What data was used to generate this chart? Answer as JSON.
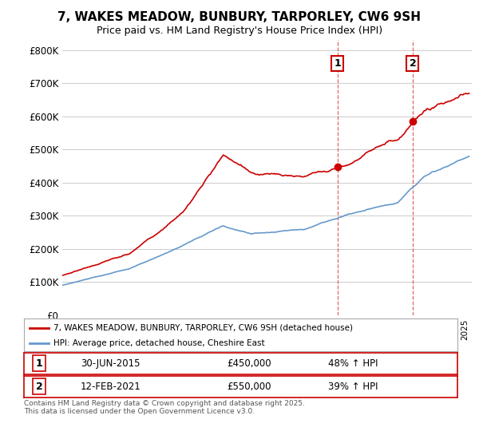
{
  "title": "7, WAKES MEADOW, BUNBURY, TARPORLEY, CW6 9SH",
  "subtitle": "Price paid vs. HM Land Registry's House Price Index (HPI)",
  "yticks": [
    0,
    100000,
    200000,
    300000,
    400000,
    500000,
    600000,
    700000,
    800000
  ],
  "ytick_labels": [
    "£0",
    "£100K",
    "£200K",
    "£300K",
    "£400K",
    "£500K",
    "£600K",
    "£700K",
    "£800K"
  ],
  "xlim_start": 1995.0,
  "xlim_end": 2025.5,
  "ylim_min": 0,
  "ylim_max": 830000,
  "line1_color": "#cc0000",
  "line2_color": "#6699cc",
  "line1_label": "7, WAKES MEADOW, BUNBURY, TARPORLEY, CW6 9SH (detached house)",
  "line2_label": "HPI: Average price, detached house, Cheshire East",
  "marker1_date": 2015.5,
  "marker1_price": 450000,
  "marker2_date": 2021.1,
  "marker2_price": 550000,
  "vline1_x": 2015.5,
  "vline2_x": 2021.1,
  "table_row1": [
    "1",
    "30-JUN-2015",
    "£450,000",
    "48% ↑ HPI"
  ],
  "table_row2": [
    "2",
    "12-FEB-2021",
    "£550,000",
    "39% ↑ HPI"
  ],
  "legend_label1": "7, WAKES MEADOW, BUNBURY, TARPORLEY, CW6 9SH (detached house)",
  "legend_label2": "HPI: Average price, detached house, Cheshire East",
  "footer": "Contains HM Land Registry data © Crown copyright and database right 2025.\nThis data is licensed under the Open Government Licence v3.0.",
  "background_color": "#ffffff",
  "grid_color": "#cccccc",
  "hpi_anchors_x": [
    1995,
    2000,
    2004,
    2007,
    2009,
    2013,
    2016,
    2020,
    2022,
    2025.3
  ],
  "hpi_anchors_y": [
    90000,
    140000,
    210000,
    270000,
    245000,
    260000,
    300000,
    340000,
    420000,
    480000
  ],
  "prop_anchors_x": [
    1995,
    2000,
    2004,
    2007,
    2009,
    2013,
    2016,
    2020,
    2022,
    2025.3
  ],
  "prop_anchors_y": [
    120000,
    185000,
    310000,
    480000,
    430000,
    420000,
    450000,
    530000,
    620000,
    670000
  ]
}
